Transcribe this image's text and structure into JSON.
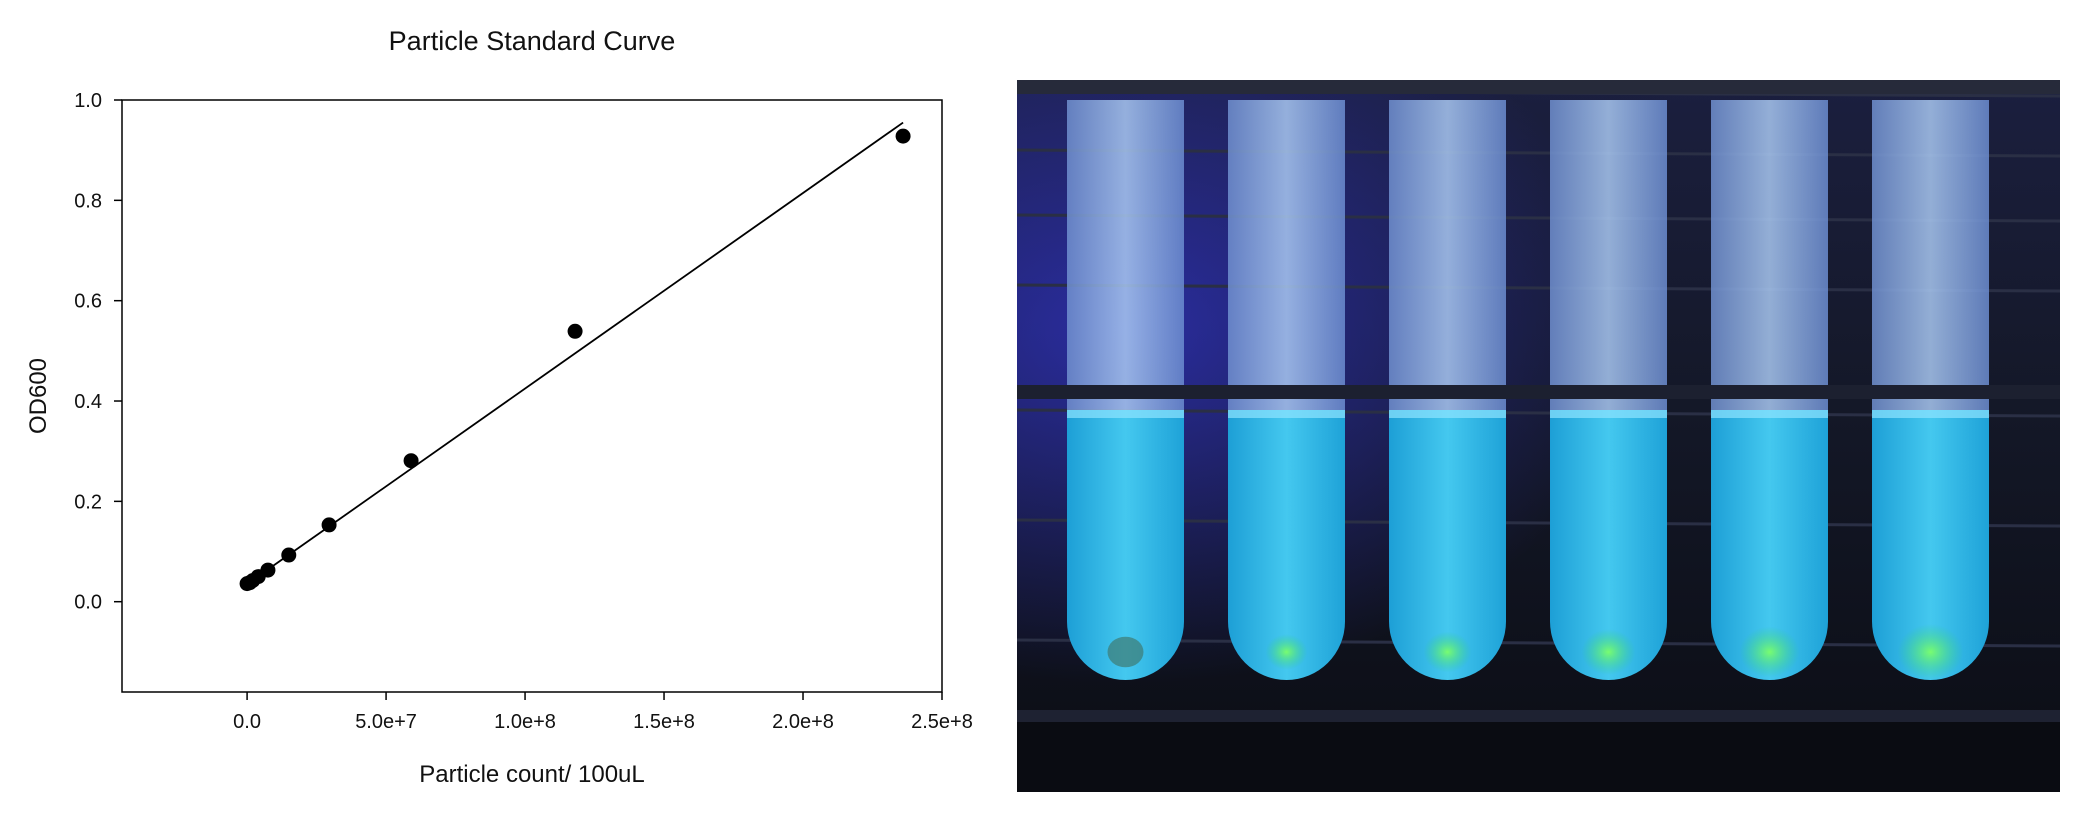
{
  "chart_data": {
    "type": "scatter",
    "title": "Particle Standard Curve",
    "xlabel": "Particle count/ 100uL",
    "ylabel": "OD600",
    "xlim": [
      -45000000,
      250000000
    ],
    "ylim": [
      -0.18,
      1.0
    ],
    "x_ticks": [
      0,
      50000000,
      100000000,
      150000000,
      200000000,
      250000000
    ],
    "x_tick_labels": [
      "0.0",
      "5.0e+7",
      "1.0e+8",
      "1.5e+8",
      "2.0e+8",
      "2.5e+8"
    ],
    "y_ticks": [
      0.0,
      0.2,
      0.4,
      0.6,
      0.8,
      1.0
    ],
    "y_tick_labels": [
      "0.0",
      "0.2",
      "0.4",
      "0.6",
      "0.8",
      "1.0"
    ],
    "grid": false,
    "points": [
      {
        "x": 0,
        "y": 0.036
      },
      {
        "x": 1000000,
        "y": 0.038
      },
      {
        "x": 2000000,
        "y": 0.042
      },
      {
        "x": 4000000,
        "y": 0.05
      },
      {
        "x": 7500000,
        "y": 0.063
      },
      {
        "x": 15000000,
        "y": 0.093
      },
      {
        "x": 29500000,
        "y": 0.153
      },
      {
        "x": 59000000,
        "y": 0.281
      },
      {
        "x": 118000000,
        "y": 0.539
      },
      {
        "x": 236000000,
        "y": 0.928
      }
    ],
    "fit_line": {
      "x": [
        0,
        236000000
      ],
      "y": [
        0.035,
        0.955
      ]
    },
    "colors": {
      "points": "#000000",
      "line": "#000000"
    }
  },
  "photo": {
    "tube_count": 6,
    "liquid_color": "#2fb8e6",
    "pellet_color": "#38e86a",
    "background_color": "#0d0f1a"
  }
}
